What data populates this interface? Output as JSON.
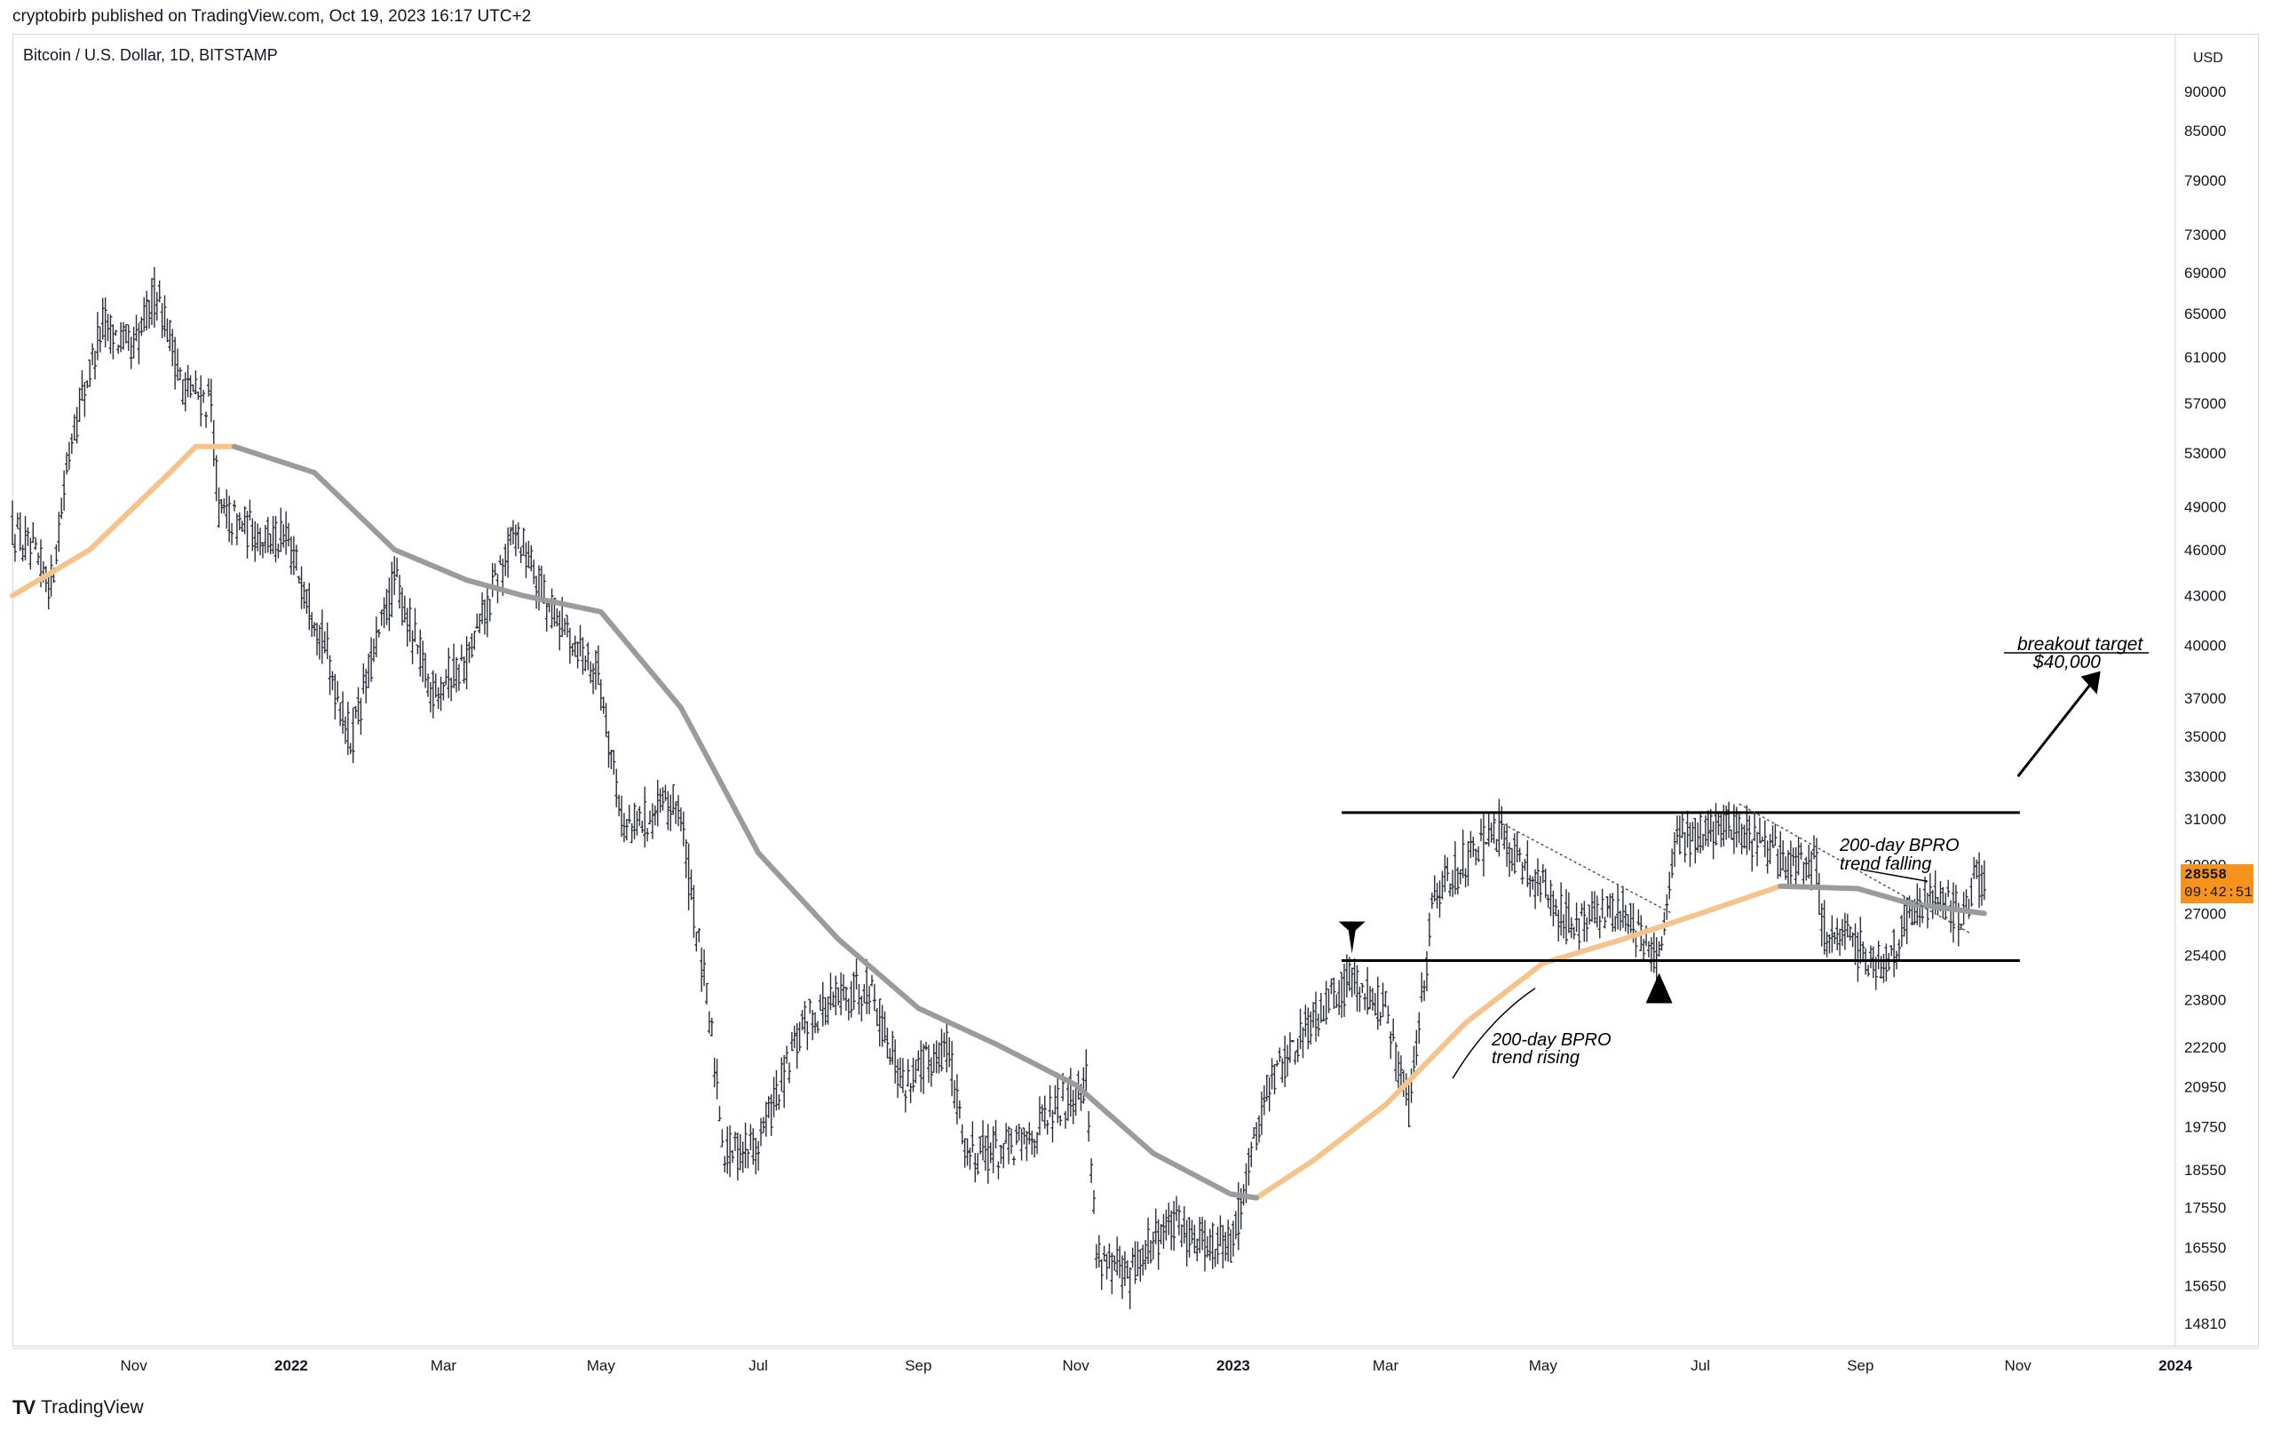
{
  "header": {
    "published": "cryptobirb published on TradingView.com, Oct 19, 2023 16:17 UTC+2",
    "symbol": "Bitcoin / U.S. Dollar, 1D, BITSTAMP"
  },
  "footer": {
    "logo_mark": "TV",
    "brand": "TradingView"
  },
  "price_badge": {
    "price": "28558",
    "countdown": "09:42:51",
    "color": "#f7931a"
  },
  "colors": {
    "bar": "#2a2e39",
    "ma_rising": "#f5c38b",
    "ma_falling": "#9b9b9b",
    "annotation": "#000000"
  },
  "chart_data": {
    "type": "bar",
    "currency_label": "USD",
    "x_ticks": [
      "Nov",
      "2022",
      "Mar",
      "May",
      "Jul",
      "Sep",
      "Nov",
      "2023",
      "Mar",
      "May",
      "Jul",
      "Sep",
      "Nov",
      "2024"
    ],
    "y_ticks": [
      90000,
      85000,
      79000,
      73000,
      69000,
      65000,
      61000,
      57000,
      53000,
      49000,
      46000,
      43000,
      40000,
      37000,
      35000,
      33000,
      31000,
      29000,
      27000,
      25400,
      23800,
      22200,
      20950,
      19750,
      18550,
      17550,
      16550,
      15650,
      14810
    ],
    "y_scale": "log",
    "price_path": [
      [
        "2021-09-15",
        47500
      ],
      [
        "2021-09-30",
        43800
      ],
      [
        "2021-10-08",
        54500
      ],
      [
        "2021-10-20",
        64000
      ],
      [
        "2021-11-01",
        61500
      ],
      [
        "2021-11-10",
        67500
      ],
      [
        "2021-11-20",
        58500
      ],
      [
        "2021-12-01",
        57000
      ],
      [
        "2021-12-04",
        48500
      ],
      [
        "2021-12-15",
        47500
      ],
      [
        "2021-12-31",
        46300
      ],
      [
        "2022-01-10",
        42000
      ],
      [
        "2022-01-24",
        34800
      ],
      [
        "2022-02-10",
        44000
      ],
      [
        "2022-02-24",
        37500
      ],
      [
        "2022-03-10",
        39000
      ],
      [
        "2022-03-29",
        47300
      ],
      [
        "2022-04-10",
        42500
      ],
      [
        "2022-04-30",
        38500
      ],
      [
        "2022-05-10",
        30500
      ],
      [
        "2022-05-31",
        31800
      ],
      [
        "2022-06-13",
        22500
      ],
      [
        "2022-06-18",
        19000
      ],
      [
        "2022-07-01",
        19300
      ],
      [
        "2022-07-20",
        23200
      ],
      [
        "2022-08-13",
        24400
      ],
      [
        "2022-08-26",
        21000
      ],
      [
        "2022-09-12",
        22300
      ],
      [
        "2022-09-20",
        19000
      ],
      [
        "2022-10-10",
        19200
      ],
      [
        "2022-11-05",
        21200
      ],
      [
        "2022-11-09",
        16500
      ],
      [
        "2022-11-21",
        15800
      ],
      [
        "2022-12-05",
        17100
      ],
      [
        "2022-12-20",
        16800
      ],
      [
        "2022-12-31",
        16550
      ],
      [
        "2023-01-14",
        20900
      ],
      [
        "2023-01-31",
        23100
      ],
      [
        "2023-02-16",
        24600
      ],
      [
        "2023-03-01",
        23400
      ],
      [
        "2023-03-10",
        20200
      ],
      [
        "2023-03-20",
        28000
      ],
      [
        "2023-04-14",
        30400
      ],
      [
        "2023-05-01",
        28000
      ],
      [
        "2023-05-12",
        26500
      ],
      [
        "2023-06-01",
        27200
      ],
      [
        "2023-06-15",
        25100
      ],
      [
        "2023-06-22",
        30000
      ],
      [
        "2023-07-13",
        30900
      ],
      [
        "2023-07-31",
        29200
      ],
      [
        "2023-08-15",
        29000
      ],
      [
        "2023-08-17",
        26400
      ],
      [
        "2023-09-11",
        25100
      ],
      [
        "2023-09-20",
        27100
      ],
      [
        "2023-10-02",
        27800
      ],
      [
        "2023-10-11",
        26700
      ],
      [
        "2023-10-16",
        28500
      ],
      [
        "2023-10-19",
        28558
      ]
    ],
    "bpro_200d": [
      [
        "2021-09-15",
        43000
      ],
      [
        "2021-10-15",
        46000
      ],
      [
        "2021-11-15",
        51500
      ],
      [
        "2021-11-25",
        53500
      ],
      [
        "2021-12-10",
        53500
      ],
      [
        "2022-01-10",
        51500
      ],
      [
        "2022-02-10",
        46000
      ],
      [
        "2022-03-10",
        44000
      ],
      [
        "2022-04-01",
        43000
      ],
      [
        "2022-05-01",
        42000
      ],
      [
        "2022-06-01",
        36500
      ],
      [
        "2022-07-01",
        29500
      ],
      [
        "2022-08-01",
        26000
      ],
      [
        "2022-09-01",
        23500
      ],
      [
        "2022-10-01",
        22300
      ],
      [
        "2022-11-01",
        21000
      ],
      [
        "2022-12-01",
        19000
      ],
      [
        "2022-12-31",
        17900
      ],
      [
        "2023-01-10",
        17800
      ],
      [
        "2023-02-01",
        18800
      ],
      [
        "2023-03-01",
        20400
      ],
      [
        "2023-04-01",
        23000
      ],
      [
        "2023-05-01",
        25100
      ],
      [
        "2023-06-01",
        26000
      ],
      [
        "2023-07-01",
        27000
      ],
      [
        "2023-08-01",
        28100
      ],
      [
        "2023-08-31",
        28000
      ],
      [
        "2023-09-20",
        27400
      ],
      [
        "2023-10-19",
        27000
      ]
    ],
    "range_lines": {
      "top": 31300,
      "bottom": 25200,
      "start": "2023-02-12",
      "end": "2023-10-19"
    },
    "annotations": {
      "breakout_title": "breakout target",
      "breakout_value": "$40,000",
      "bpro_rising_l1": "200-day BPRO",
      "bpro_rising_l2": "trend rising",
      "bpro_falling_l1": "200-day BPRO",
      "bpro_falling_l2": "trend falling"
    }
  }
}
